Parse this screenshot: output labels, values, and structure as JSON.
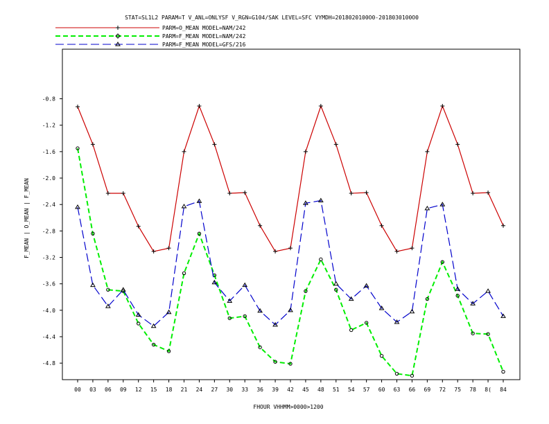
{
  "chart_data": {
    "type": "line",
    "title": "STAT=SL1L2 PARAM=T V_ANL=ONLYSF V_RGN=G104/SAK LEVEL=SFC VYMDH=2018020100O0-2018030100O0",
    "xlabel": "FHOUR VHHMM>0000>1200",
    "ylabel": "F_MEAN | O_MEAN | F_MEAN",
    "categories": [
      "00",
      "03",
      "06",
      "09",
      "12",
      "15",
      "18",
      "21",
      "24",
      "27",
      "30",
      "33",
      "36",
      "39",
      "42",
      "45",
      "48",
      "51",
      "54",
      "57",
      "60",
      "63",
      "66",
      "69",
      "72",
      "75",
      "78",
      "8(",
      "84"
    ],
    "ylim": [
      -5.05,
      -0.05
    ],
    "yticks": [
      -0.8,
      -1.2,
      -1.6,
      -2.0,
      -2.4,
      -2.8,
      -3.2,
      -3.6,
      -4.0,
      -4.4,
      -4.8
    ],
    "ytick_labels": [
      "-0.8",
      "-1.2",
      "-1.6",
      "-2.0",
      "-2.4",
      "-2.8",
      "-3.2",
      "-3.6",
      "-4.0",
      "-4.4",
      "-4.8"
    ],
    "grid": false,
    "legend_position": "top-left",
    "series": [
      {
        "name": "PARM=O_MEAN MODEL=NAM/242",
        "color": "#cc0000",
        "style": "solid",
        "marker": "plus",
        "values": [
          -0.92,
          -1.49,
          -2.23,
          -2.23,
          -2.73,
          -3.11,
          -3.06,
          -1.6,
          -0.91,
          -1.49,
          -2.23,
          -2.22,
          -2.72,
          -3.11,
          -3.06,
          -1.6,
          -0.91,
          -1.49,
          -2.23,
          -2.22,
          -2.72,
          -3.11,
          -3.06,
          -1.6,
          -0.91,
          -1.49,
          -2.23,
          -2.22,
          -2.72
        ]
      },
      {
        "name": "PARM=F_MEAN MODEL=NAM/242",
        "color": "#00ee00",
        "style": "dashed",
        "marker": "circle",
        "values": [
          -1.55,
          -2.84,
          -3.69,
          -3.71,
          -4.2,
          -4.52,
          -4.62,
          -3.44,
          -2.84,
          -3.47,
          -4.12,
          -4.09,
          -4.56,
          -4.78,
          -4.81,
          -3.71,
          -3.23,
          -3.69,
          -4.3,
          -4.19,
          -4.69,
          -4.96,
          -4.99,
          -3.83,
          -3.27,
          -3.78,
          -4.35,
          -4.36,
          -4.93
        ]
      },
      {
        "name": "PARM=F_MEAN MODEL=GFS/216",
        "color": "#0000cc",
        "style": "dashed",
        "marker": "triangle",
        "values": [
          -2.44,
          -3.62,
          -3.94,
          -3.69,
          -4.07,
          -4.24,
          -4.03,
          -2.43,
          -2.35,
          -3.58,
          -3.86,
          -3.62,
          -4.01,
          -4.22,
          -4.0,
          -2.38,
          -2.34,
          -3.6,
          -3.83,
          -3.63,
          -3.97,
          -4.18,
          -4.02,
          -2.46,
          -2.4,
          -3.68,
          -3.9,
          -3.71,
          -4.09
        ]
      }
    ]
  }
}
